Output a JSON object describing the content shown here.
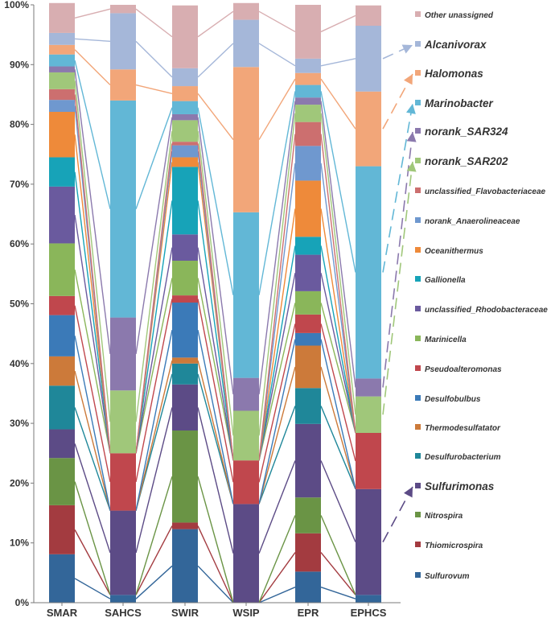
{
  "chart_data": {
    "type": "bar",
    "stacked": true,
    "normalized": true,
    "title": "",
    "xlabel": "",
    "ylabel": "",
    "ylim": [
      0,
      100
    ],
    "yticks": [
      "0%",
      "10%",
      "20%",
      "30%",
      "40%",
      "50%",
      "60%",
      "70%",
      "80%",
      "90%",
      "100%"
    ],
    "categories": [
      "SMAR",
      "SAHCS",
      "SWIR",
      "WSIP",
      "EPR",
      "EPHCS"
    ],
    "series": [
      {
        "name": "Sulfurovum",
        "color": "#336699",
        "values": [
          8.1,
          1.3,
          12.3,
          0.0,
          5.2,
          1.3
        ]
      },
      {
        "name": "Thiomicrospira",
        "color": "#a33b40",
        "values": [
          8.2,
          0.0,
          1.1,
          0.0,
          6.4,
          0.0
        ]
      },
      {
        "name": "Nitrospira",
        "color": "#6a9445",
        "values": [
          7.9,
          0.0,
          15.4,
          0.0,
          6.0,
          0.0
        ]
      },
      {
        "name": "Sulfurimonas",
        "color": "#5c4b86",
        "values": [
          4.8,
          14.1,
          7.7,
          16.5,
          12.3,
          17.7
        ]
      },
      {
        "name": "Desulfurobacterium",
        "color": "#1f8799",
        "values": [
          7.3,
          0.0,
          3.5,
          0.0,
          6.0,
          0.0
        ]
      },
      {
        "name": "Thermodesulfatator",
        "color": "#cc7a3a",
        "values": [
          4.9,
          0.0,
          1.0,
          0.0,
          7.1,
          0.0
        ]
      },
      {
        "name": "Desulfobulbus",
        "color": "#3b7ab8",
        "values": [
          6.9,
          0.0,
          9.2,
          0.0,
          2.1,
          0.0
        ]
      },
      {
        "name": "Pseudoalteromonas",
        "color": "#c0474d",
        "values": [
          3.2,
          9.6,
          1.2,
          7.3,
          3.1,
          9.4
        ]
      },
      {
        "name": "Marinicella",
        "color": "#8ab65a",
        "values": [
          8.8,
          0.0,
          5.8,
          0.0,
          3.9,
          0.0
        ]
      },
      {
        "name": "unclassified_Rhodobacteraceae",
        "color": "#6a5a9e",
        "values": [
          9.5,
          0.0,
          4.4,
          0.0,
          6.1,
          0.0
        ]
      },
      {
        "name": "Gallionella",
        "color": "#17a3b8",
        "values": [
          4.9,
          0.0,
          11.3,
          0.0,
          3.0,
          0.0
        ]
      },
      {
        "name": "Oceanithermus",
        "color": "#ee8a3a",
        "values": [
          7.6,
          0.0,
          1.6,
          0.0,
          9.4,
          0.0
        ]
      },
      {
        "name": "norank_Anaerolineaceae",
        "color": "#6f98cf",
        "values": [
          2.0,
          0.0,
          2.0,
          0.0,
          5.8,
          0.0
        ]
      },
      {
        "name": "unclassified_Flavobacteriaceae",
        "color": "#cc6f6f",
        "values": [
          1.8,
          0.0,
          0.6,
          0.0,
          4.0,
          0.0
        ]
      },
      {
        "name": "norank_SAR202",
        "color": "#a0c77a",
        "values": [
          2.8,
          10.5,
          3.6,
          8.3,
          2.9,
          6.1
        ]
      },
      {
        "name": "norank_SAR324",
        "color": "#8b79ad",
        "values": [
          1.0,
          12.2,
          1.0,
          5.5,
          1.2,
          3.0
        ]
      },
      {
        "name": "Marinobacter",
        "color": "#62b7d6",
        "values": [
          2.0,
          36.3,
          2.2,
          27.7,
          2.1,
          35.5
        ]
      },
      {
        "name": "Halomonas",
        "color": "#f2a679",
        "values": [
          1.6,
          5.2,
          2.5,
          24.3,
          2.0,
          12.5
        ]
      },
      {
        "name": "Alcanivorax",
        "color": "#a5b7d9",
        "values": [
          2.0,
          9.4,
          3.0,
          7.9,
          2.4,
          11.0
        ]
      },
      {
        "name": "Other unassigned",
        "color": "#d8aeb1",
        "values": [
          5.0,
          1.4,
          10.5,
          2.8,
          9.0,
          3.4
        ]
      }
    ],
    "highlighted": [
      "Alcanivorax",
      "Halomonas",
      "Marinobacter",
      "norank_SAR324",
      "norank_SAR202",
      "Sulfurimonas"
    ],
    "legend_position": "right",
    "connector_lines": true,
    "grid": false
  }
}
